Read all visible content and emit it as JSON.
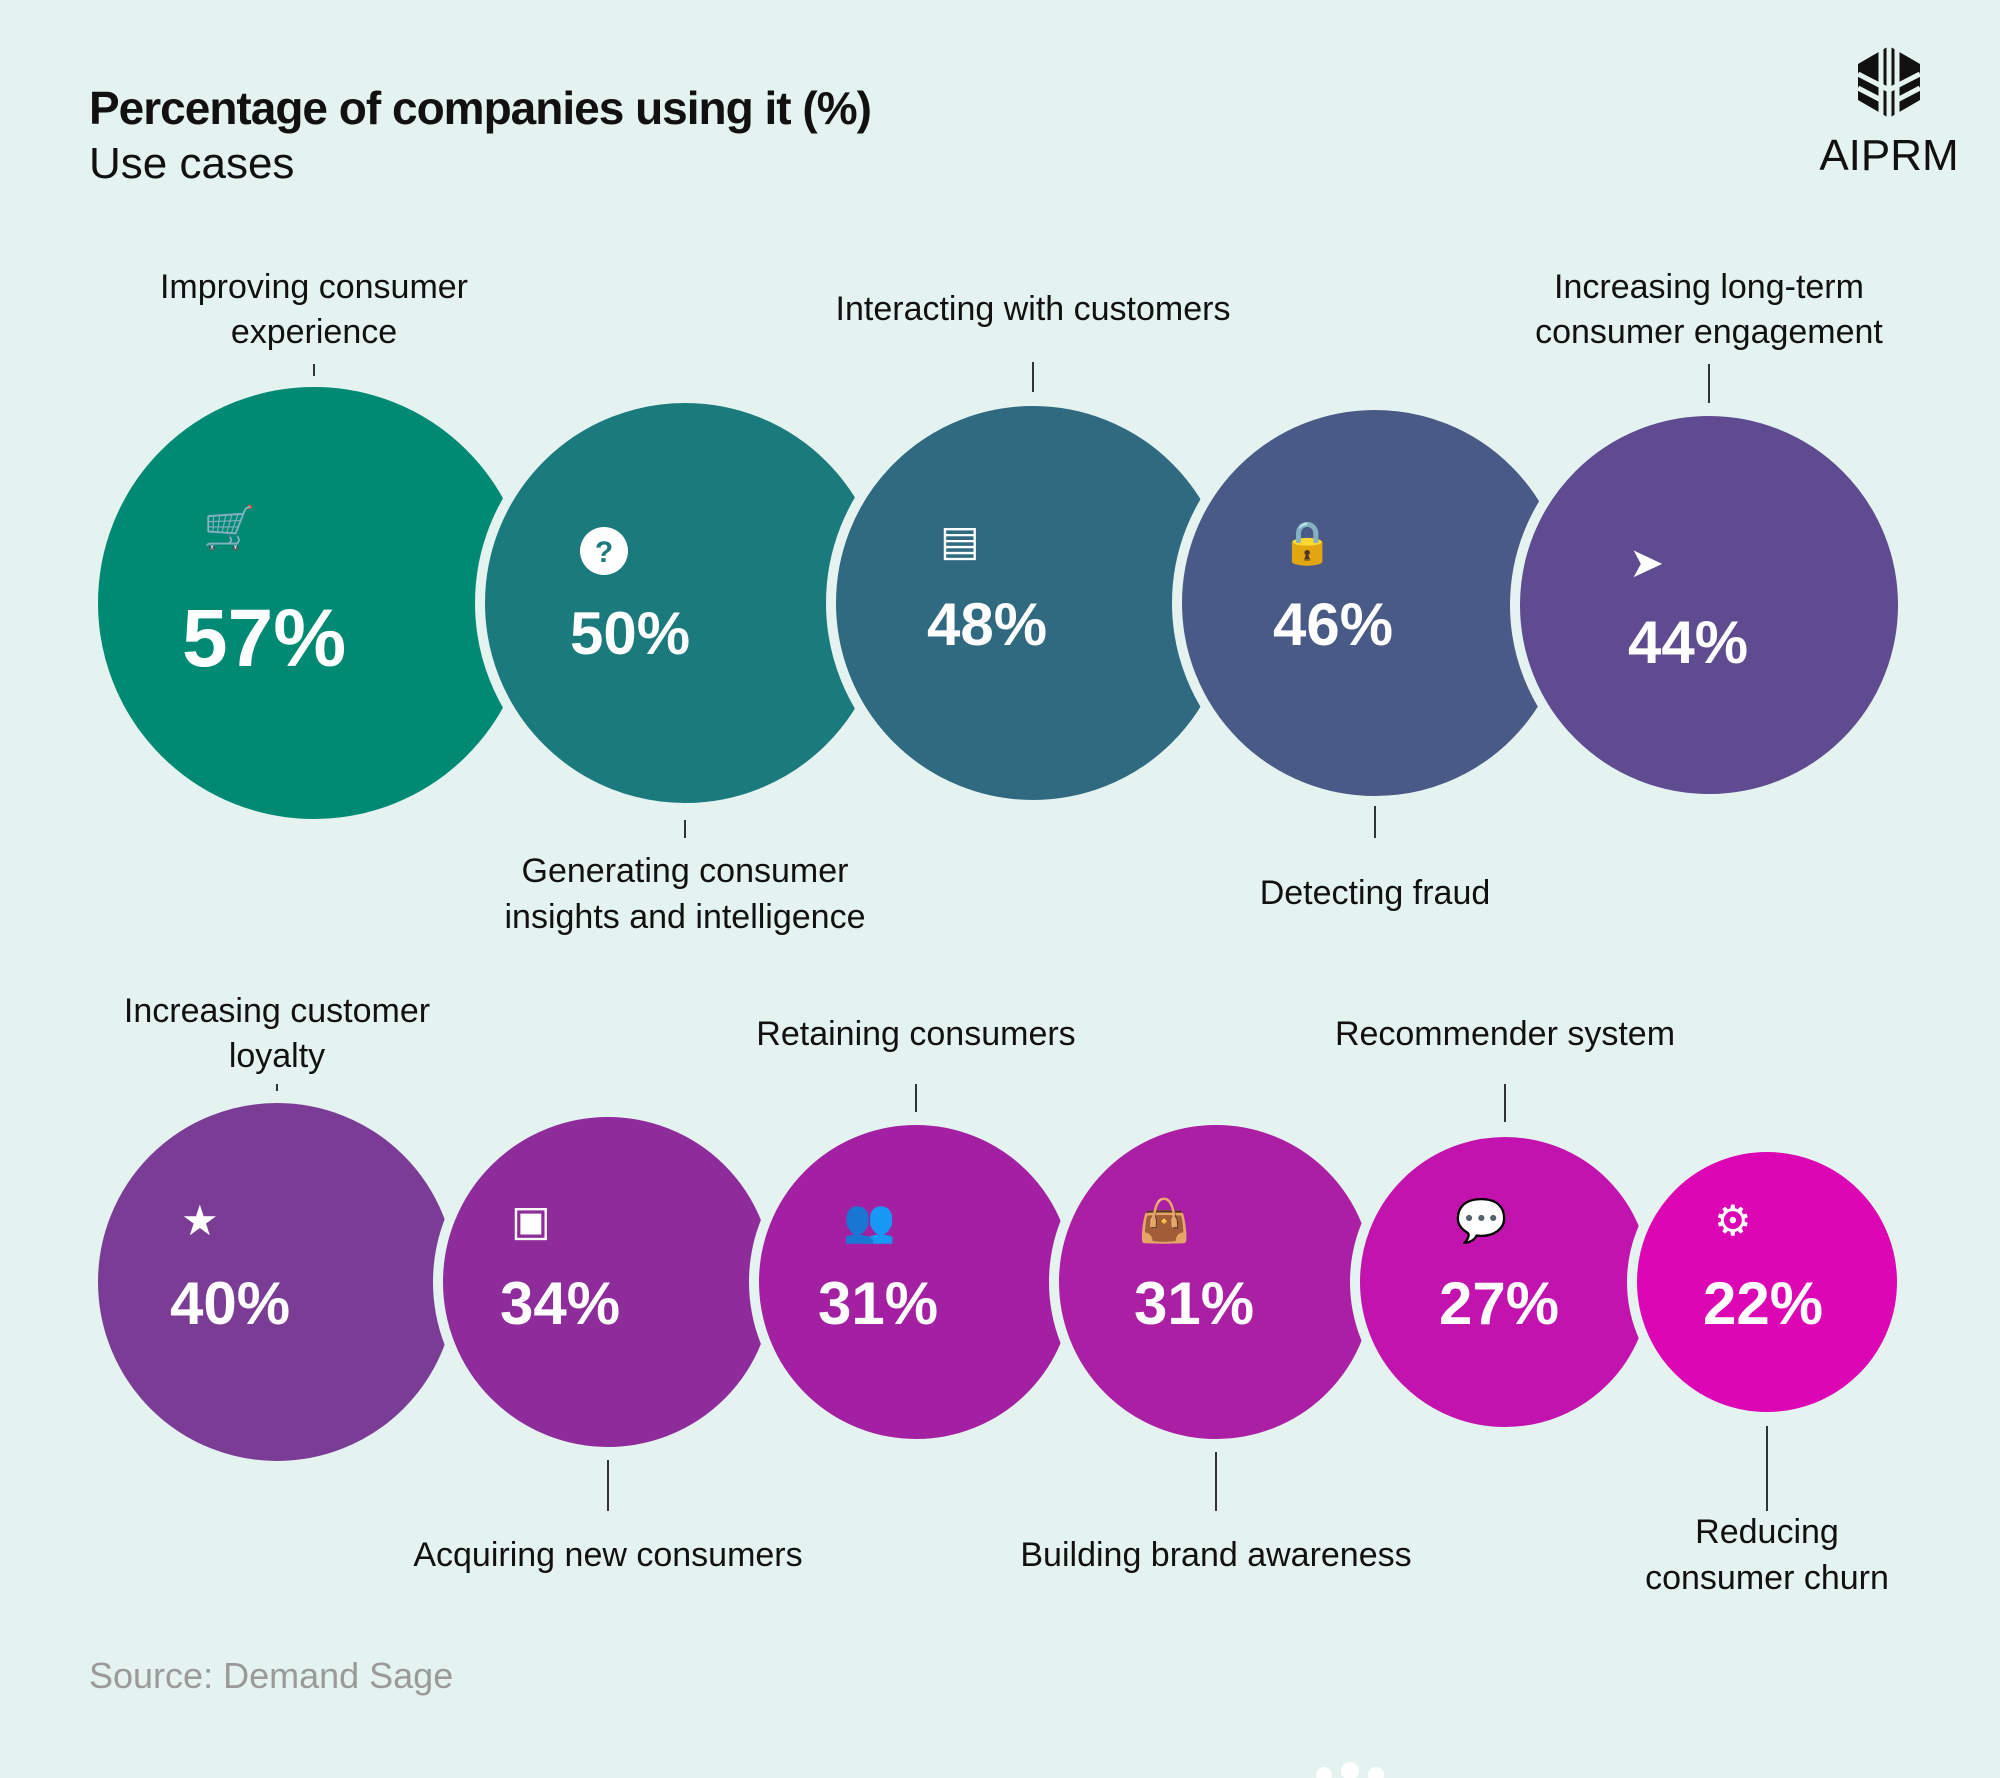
{
  "title": "Percentage of companies using it (%)",
  "subtitle": "Use cases",
  "logo": "AIPRM",
  "source": "Source: Demand Sage",
  "chart_data": {
    "type": "bubble",
    "title": "Percentage of companies using it (%)",
    "subtitle": "Use cases",
    "unit": "%",
    "items": [
      {
        "label": [
          "Improving consumer",
          "experience"
        ],
        "value": 57,
        "display": "57%",
        "color": "#008a74",
        "icon": "cart-icon"
      },
      {
        "label": [
          "Generating consumer",
          "insights and intelligence"
        ],
        "value": 50,
        "display": "50%",
        "color": "#1b7a7c",
        "icon": "question-icon"
      },
      {
        "label": [
          "Interacting with customers"
        ],
        "value": 48,
        "display": "48%",
        "color": "#2f6a80",
        "icon": "chat-icon"
      },
      {
        "label": [
          "Detecting fraud"
        ],
        "value": 46,
        "display": "46%",
        "color": "#4a5a86",
        "icon": "lock-icon"
      },
      {
        "label": [
          "Increasing long-term",
          "consumer engagement"
        ],
        "value": 44,
        "display": "44%",
        "color": "#5f4b8f",
        "icon": "cursor-icon"
      },
      {
        "label": [
          "Increasing customer",
          "loyalty"
        ],
        "value": 40,
        "display": "40%",
        "color": "#7b3c95",
        "icon": "star-icon"
      },
      {
        "label": [
          "Acquiring new consumers"
        ],
        "value": 34,
        "display": "34%",
        "color": "#8e2c9c",
        "icon": "contact-card-icon"
      },
      {
        "label": [
          "Retaining consumers"
        ],
        "value": 31,
        "display": "31%",
        "color": "#a320a2",
        "icon": "group-icon"
      },
      {
        "label": [
          "Building brand awareness"
        ],
        "value": 31,
        "display": "31%",
        "color": "#ab1fa4",
        "icon": "shopping-bag-icon"
      },
      {
        "label": [
          "Recommender system"
        ],
        "value": 27,
        "display": "27%",
        "color": "#c313ae",
        "icon": "speech-bubbles-icon"
      },
      {
        "label": [
          "Reducing",
          "consumer churn"
        ],
        "value": 22,
        "display": "22%",
        "color": "#dd06b5",
        "icon": "gears-icon"
      }
    ]
  }
}
